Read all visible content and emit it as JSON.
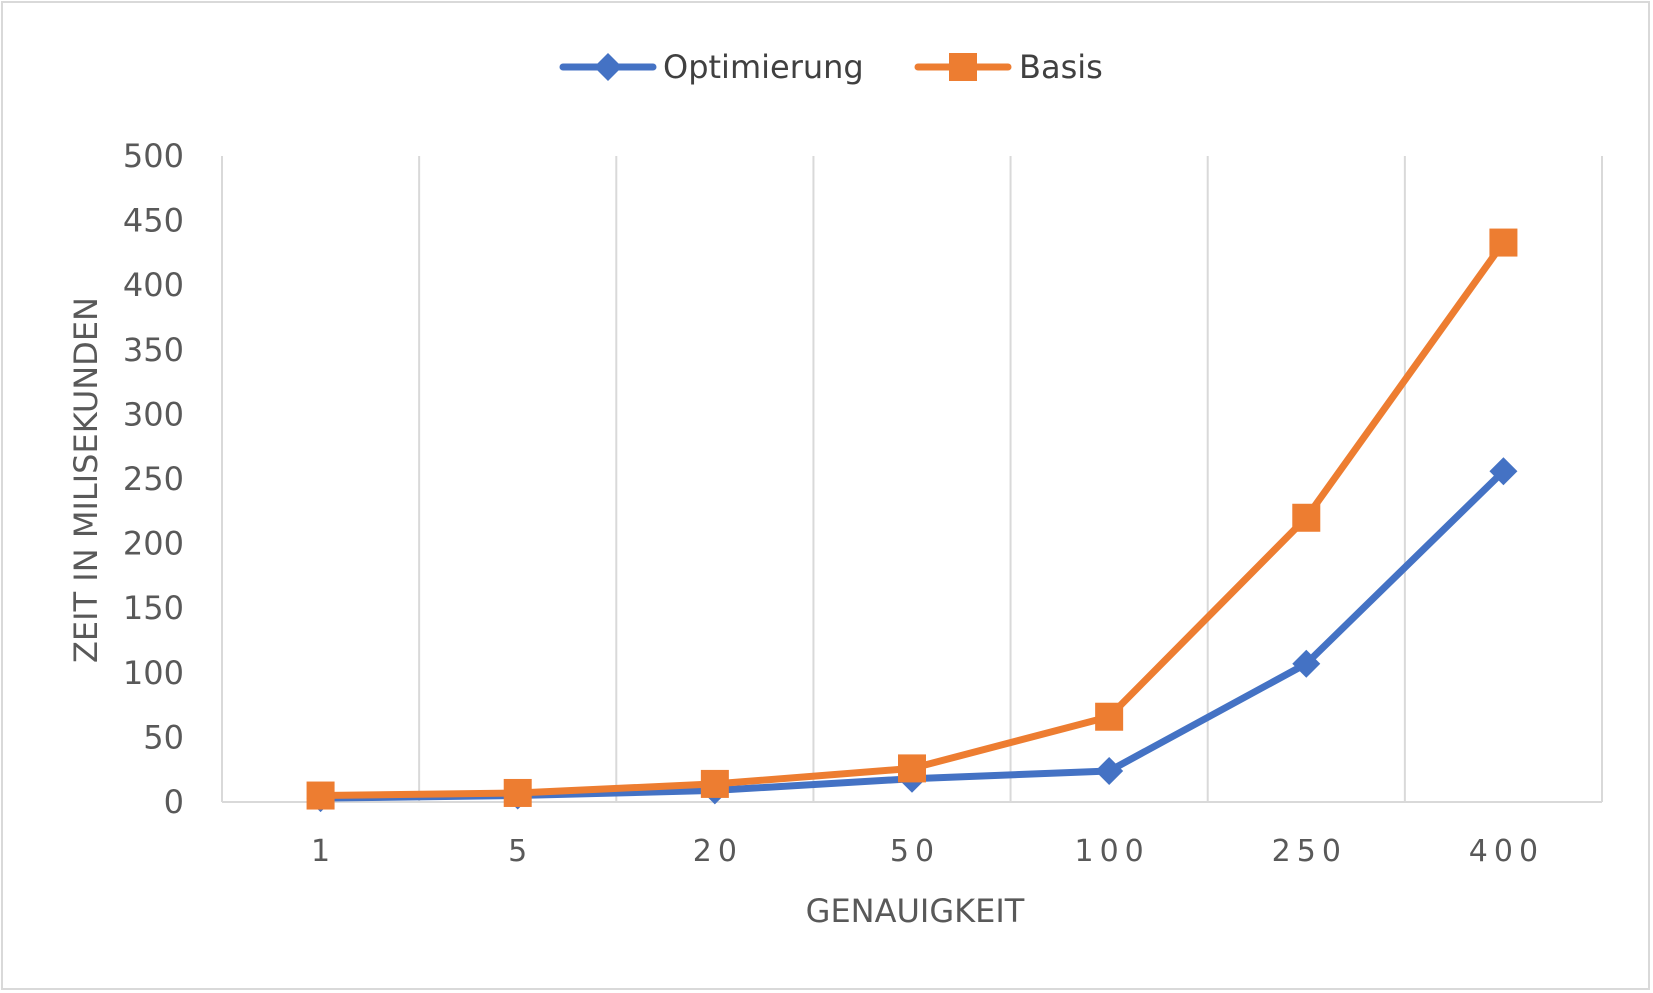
{
  "chart_data": {
    "type": "line",
    "categories": [
      "1",
      "5",
      "20",
      "50",
      "100",
      "250",
      "400"
    ],
    "series": [
      {
        "name": "Optimierung",
        "color": "#4472c4",
        "marker": "diamond",
        "values": [
          3,
          5,
          9,
          18,
          24,
          107,
          256
        ]
      },
      {
        "name": "Basis",
        "color": "#ed7d31",
        "marker": "square",
        "values": [
          5,
          7,
          14,
          26,
          66,
          220,
          433
        ]
      }
    ],
    "title": "",
    "xlabel": "GENAUIGKEIT",
    "ylabel": "ZEIT IN MILISEKUNDEN",
    "ylim": [
      0,
      500
    ],
    "yticks": [
      "0",
      "50",
      "100",
      "150",
      "200",
      "250",
      "300",
      "350",
      "400",
      "450",
      "500"
    ],
    "grid": "vertical",
    "legend": "top-center"
  }
}
